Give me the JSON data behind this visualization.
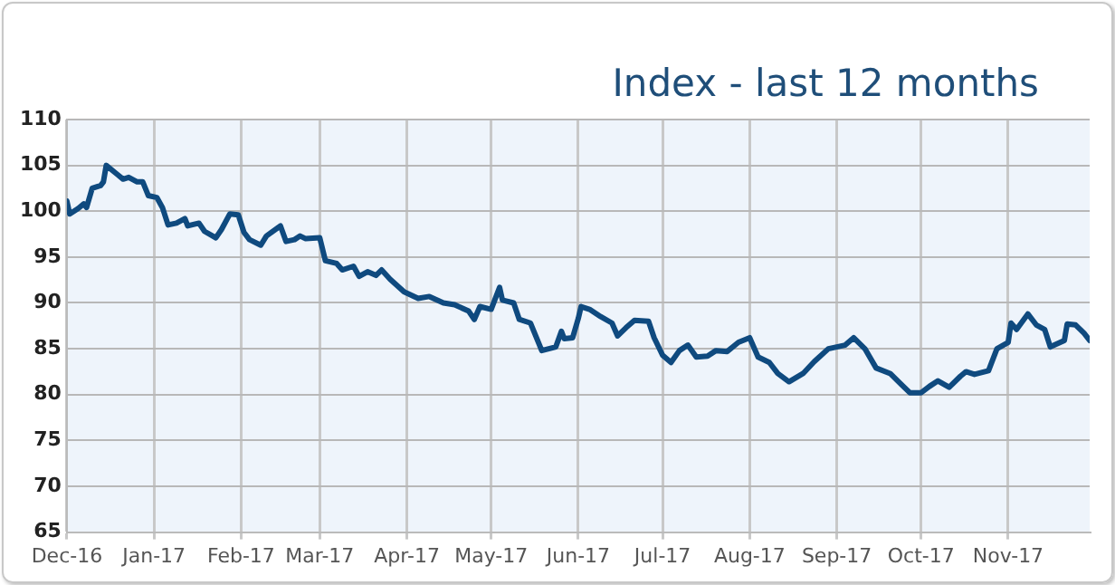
{
  "chart_data": {
    "type": "line",
    "title": "Index - last 12 months",
    "x": [
      "2016-12-01",
      "2016-12-02",
      "2016-12-05",
      "2016-12-07",
      "2016-12-08",
      "2016-12-10",
      "2016-12-13",
      "2016-12-14",
      "2016-12-15",
      "2016-12-19",
      "2016-12-21",
      "2016-12-23",
      "2016-12-26",
      "2016-12-28",
      "2016-12-30",
      "2017-01-02",
      "2017-01-04",
      "2017-01-06",
      "2017-01-09",
      "2017-01-12",
      "2017-01-13",
      "2017-01-17",
      "2017-01-19",
      "2017-01-23",
      "2017-01-25",
      "2017-01-28",
      "2017-01-31",
      "2017-02-02",
      "2017-02-04",
      "2017-02-08",
      "2017-02-10",
      "2017-02-15",
      "2017-02-17",
      "2017-02-20",
      "2017-02-22",
      "2017-02-24",
      "2017-03-01",
      "2017-03-03",
      "2017-03-07",
      "2017-03-09",
      "2017-03-13",
      "2017-03-15",
      "2017-03-18",
      "2017-03-21",
      "2017-03-23",
      "2017-03-26",
      "2017-03-31",
      "2017-04-05",
      "2017-04-09",
      "2017-04-14",
      "2017-04-18",
      "2017-04-23",
      "2017-04-25",
      "2017-04-27",
      "2017-05-01",
      "2017-05-04",
      "2017-05-05",
      "2017-05-09",
      "2017-05-11",
      "2017-05-15",
      "2017-05-19",
      "2017-05-24",
      "2017-05-26",
      "2017-05-27",
      "2017-05-30",
      "2017-06-01",
      "2017-06-02",
      "2017-06-05",
      "2017-06-09",
      "2017-06-13",
      "2017-06-15",
      "2017-06-18",
      "2017-06-21",
      "2017-06-26",
      "2017-06-28",
      "2017-07-01",
      "2017-07-04",
      "2017-07-07",
      "2017-07-10",
      "2017-07-13",
      "2017-07-17",
      "2017-07-20",
      "2017-07-24",
      "2017-07-28",
      "2017-08-01",
      "2017-08-04",
      "2017-08-08",
      "2017-08-11",
      "2017-08-15",
      "2017-08-20",
      "2017-08-24",
      "2017-08-29",
      "2017-09-01",
      "2017-09-04",
      "2017-09-07",
      "2017-09-11",
      "2017-09-15",
      "2017-09-20",
      "2017-09-24",
      "2017-09-27",
      "2017-10-01",
      "2017-10-04",
      "2017-10-07",
      "2017-10-11",
      "2017-10-15",
      "2017-10-17",
      "2017-10-20",
      "2017-10-25",
      "2017-10-28",
      "2017-11-01",
      "2017-11-02",
      "2017-11-04",
      "2017-11-08",
      "2017-11-11",
      "2017-11-14",
      "2017-11-16",
      "2017-11-21",
      "2017-11-22",
      "2017-11-25",
      "2017-11-28",
      "2017-11-30"
    ],
    "series": [
      {
        "color": "#0f4a7f",
        "values": [
          101.1,
          99.7,
          100.3,
          100.8,
          100.4,
          102.5,
          102.8,
          103.2,
          105.0,
          104.0,
          103.5,
          103.7,
          103.2,
          103.2,
          101.7,
          101.5,
          100.4,
          98.5,
          98.7,
          99.2,
          98.4,
          98.7,
          97.8,
          97.1,
          98.0,
          99.7,
          99.6,
          97.7,
          96.9,
          96.3,
          97.3,
          98.4,
          96.7,
          96.9,
          97.3,
          97.0,
          97.1,
          94.6,
          94.3,
          93.6,
          94.0,
          92.9,
          93.4,
          93.0,
          93.6,
          92.6,
          91.2,
          90.5,
          90.7,
          90.0,
          89.8,
          89.1,
          88.2,
          89.6,
          89.3,
          91.7,
          90.3,
          90.0,
          88.2,
          87.8,
          84.8,
          85.2,
          86.9,
          86.1,
          86.2,
          88.3,
          89.6,
          89.3,
          88.5,
          87.8,
          86.4,
          87.3,
          88.1,
          88.0,
          86.2,
          84.3,
          83.5,
          84.8,
          85.4,
          84.1,
          84.2,
          84.8,
          84.7,
          85.7,
          86.2,
          84.1,
          83.5,
          82.3,
          81.4,
          82.3,
          83.6,
          85.0,
          85.2,
          85.4,
          86.2,
          85.0,
          82.9,
          82.3,
          81.1,
          80.2,
          80.2,
          80.9,
          81.5,
          80.8,
          82.0,
          82.5,
          82.2,
          82.6,
          85.0,
          85.7,
          87.8,
          87.1,
          88.8,
          87.6,
          87.1,
          85.2,
          85.9,
          87.7,
          87.6,
          86.7,
          85.9
        ]
      }
    ],
    "xlim": [
      "2016-12-01",
      "2017-11-30"
    ],
    "xticks": [
      {
        "value": "2016-12-01",
        "label": "Dec-16"
      },
      {
        "value": "2017-01-01",
        "label": "Jan-17"
      },
      {
        "value": "2017-02-01",
        "label": "Feb-17"
      },
      {
        "value": "2017-03-01",
        "label": "Mar-17"
      },
      {
        "value": "2017-04-01",
        "label": "Apr-17"
      },
      {
        "value": "2017-05-01",
        "label": "May-17"
      },
      {
        "value": "2017-06-01",
        "label": "Jun-17"
      },
      {
        "value": "2017-07-01",
        "label": "Jul-17"
      },
      {
        "value": "2017-08-01",
        "label": "Aug-17"
      },
      {
        "value": "2017-09-01",
        "label": "Sep-17"
      },
      {
        "value": "2017-10-01",
        "label": "Oct-17"
      },
      {
        "value": "2017-11-01",
        "label": "Nov-17"
      }
    ],
    "ylim": [
      65,
      110
    ],
    "yticks": [
      65,
      70,
      75,
      80,
      85,
      90,
      95,
      100,
      105,
      110
    ],
    "grid": true,
    "legend": false,
    "marker": "none",
    "line_style": "solid"
  }
}
